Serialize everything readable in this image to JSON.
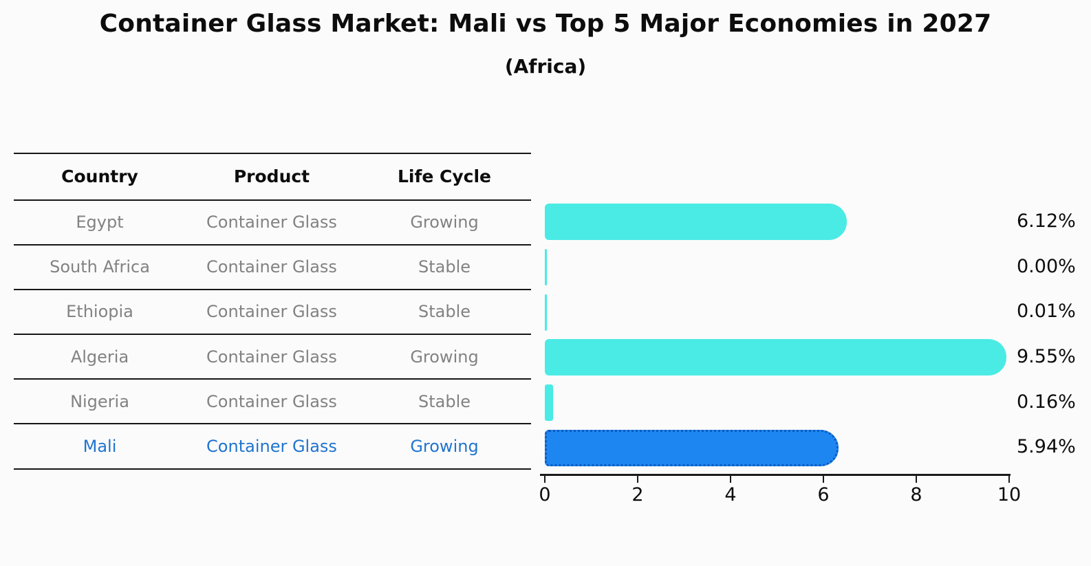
{
  "title": "Container Glass Market: Mali vs Top 5 Major Economies in 2027",
  "subtitle": "(Africa)",
  "table": {
    "headers": [
      "Country",
      "Product",
      "Life Cycle"
    ],
    "rows": [
      {
        "country": "Egypt",
        "product": "Container Glass",
        "life_cycle": "Growing",
        "highlight": false
      },
      {
        "country": "South Africa",
        "product": "Container Glass",
        "life_cycle": "Stable",
        "highlight": false
      },
      {
        "country": "Ethiopia",
        "product": "Container Glass",
        "life_cycle": "Stable",
        "highlight": false
      },
      {
        "country": "Algeria",
        "product": "Container Glass",
        "life_cycle": "Growing",
        "highlight": false
      },
      {
        "country": "Nigeria",
        "product": "Container Glass",
        "life_cycle": "Stable",
        "highlight": false
      },
      {
        "country": "Mali",
        "product": "Container Glass",
        "life_cycle": "Growing",
        "highlight": true
      }
    ]
  },
  "chart_data": {
    "type": "bar",
    "orientation": "horizontal",
    "title": "Container Glass Market: Mali vs Top 5 Major Economies in 2027",
    "subtitle": "(Africa)",
    "categories": [
      "Egypt",
      "South Africa",
      "Ethiopia",
      "Algeria",
      "Nigeria",
      "Mali"
    ],
    "values": [
      6.12,
      0.0,
      0.01,
      9.55,
      0.16,
      5.94
    ],
    "value_labels": [
      "6.12%",
      "0.00%",
      "0.01%",
      "9.55%",
      "0.16%",
      "5.94%"
    ],
    "xlim": [
      0,
      10
    ],
    "x_ticks": [
      0,
      2,
      4,
      6,
      8,
      10
    ],
    "grid": false,
    "legend": "none",
    "bar_color": "#4aebe4",
    "highlight_color": "#1e86f0",
    "highlight_border_color": "#0b5bc2",
    "highlight_index": 5
  },
  "colors": {
    "background": "#fbfbfb",
    "table_line": "#161616",
    "row_text": "#828282",
    "header_text": "#0d0d0d",
    "highlight_text": "#1f74cf"
  }
}
